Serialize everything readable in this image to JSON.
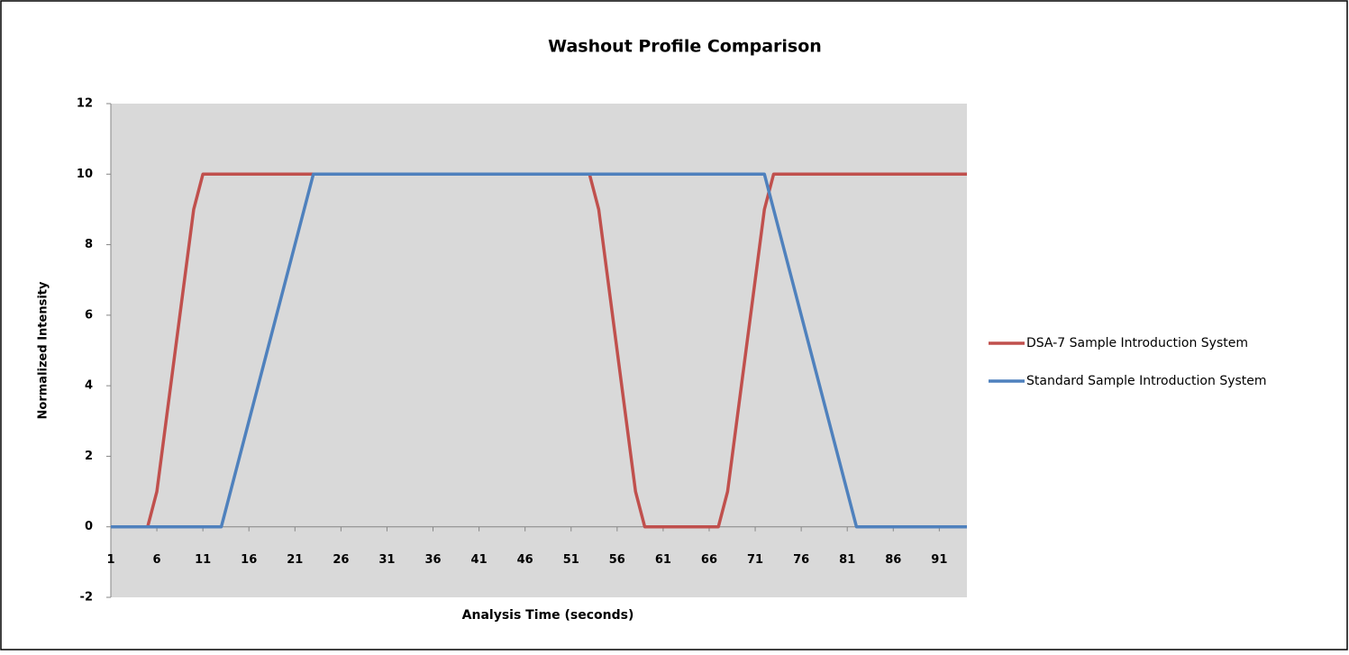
{
  "chart_data": {
    "type": "line",
    "title": "Washout Profile Comparison",
    "x_label": "Analysis Time (seconds)",
    "y_label": "Normalized Intensity",
    "x": [
      1,
      2,
      3,
      4,
      5,
      6,
      7,
      8,
      9,
      10,
      11,
      12,
      13,
      14,
      15,
      16,
      17,
      18,
      19,
      20,
      21,
      22,
      23,
      24,
      25,
      26,
      27,
      28,
      29,
      30,
      31,
      32,
      33,
      34,
      35,
      36,
      37,
      38,
      39,
      40,
      41,
      42,
      43,
      44,
      45,
      46,
      47,
      48,
      49,
      50,
      51,
      52,
      53,
      54,
      55,
      56,
      57,
      58,
      59,
      60,
      61,
      62,
      63,
      64,
      65,
      66,
      67,
      68,
      69,
      70,
      71,
      72,
      73,
      74,
      75,
      76,
      77,
      78,
      79,
      80,
      81,
      82,
      83,
      84,
      85,
      86,
      87,
      88,
      89,
      90,
      91,
      92,
      93,
      94
    ],
    "xlim": [
      1,
      94
    ],
    "xticks": [
      1,
      6,
      11,
      16,
      21,
      26,
      31,
      36,
      41,
      46,
      51,
      56,
      61,
      66,
      71,
      76,
      81,
      86,
      91
    ],
    "ylim": [
      -2,
      12
    ],
    "yticks": [
      -2,
      0,
      2,
      4,
      6,
      8,
      10,
      12
    ],
    "legend": "right",
    "series": [
      {
        "name": "DSA-7 Sample Introduction System",
        "color": "#c0504d",
        "values": [
          0,
          0,
          0,
          0,
          0,
          1,
          3,
          5,
          7,
          9,
          10,
          10,
          10,
          10,
          10,
          10,
          10,
          10,
          10,
          10,
          10,
          10,
          10,
          10,
          10,
          10,
          10,
          10,
          10,
          10,
          10,
          10,
          10,
          10,
          10,
          10,
          10,
          10,
          10,
          10,
          10,
          10,
          10,
          10,
          10,
          10,
          10,
          10,
          10,
          10,
          10,
          10,
          10,
          9,
          7,
          5,
          3,
          1,
          0,
          0,
          0,
          0,
          0,
          0,
          0,
          0,
          0,
          1,
          3,
          5,
          7,
          9,
          10,
          10,
          10,
          10,
          10,
          10,
          10,
          10,
          10,
          10,
          10,
          10,
          10,
          10,
          10,
          10,
          10,
          10,
          10,
          10,
          10,
          10
        ]
      },
      {
        "name": "Standard Sample Introduction System",
        "color": "#4f81bd",
        "values": [
          0,
          0,
          0,
          0,
          0,
          0,
          0,
          0,
          0,
          0,
          0,
          0,
          0,
          1,
          2,
          3,
          4,
          5,
          6,
          7,
          8,
          9,
          10,
          10,
          10,
          10,
          10,
          10,
          10,
          10,
          10,
          10,
          10,
          10,
          10,
          10,
          10,
          10,
          10,
          10,
          10,
          10,
          10,
          10,
          10,
          10,
          10,
          10,
          10,
          10,
          10,
          10,
          10,
          10,
          10,
          10,
          10,
          10,
          10,
          10,
          10,
          10,
          10,
          10,
          10,
          10,
          10,
          10,
          10,
          10,
          10,
          10,
          9,
          8,
          7,
          6,
          5,
          4,
          3,
          2,
          1,
          0,
          0,
          0,
          0,
          0,
          0,
          0,
          0,
          0,
          0,
          0,
          0,
          0
        ]
      }
    ]
  }
}
